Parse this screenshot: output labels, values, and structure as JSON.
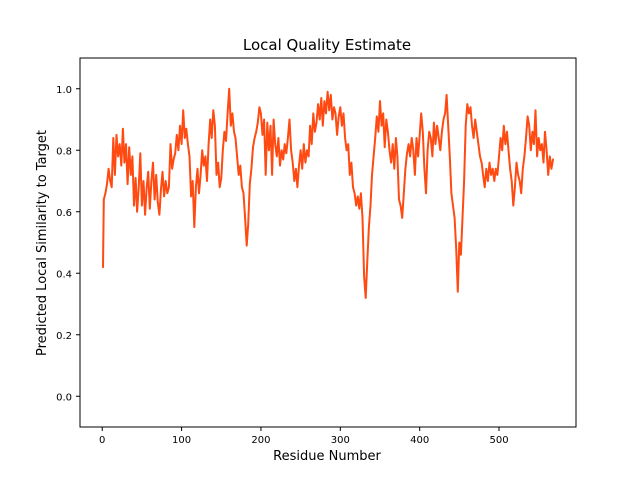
{
  "chart_data": {
    "type": "line",
    "title": "Local Quality Estimate",
    "xlabel": "Residue Number",
    "ylabel": "Predicted Local Similarity to Target",
    "xlim": [
      -28,
      597
    ],
    "ylim": [
      -0.1,
      1.1
    ],
    "xticks": [
      0,
      100,
      200,
      300,
      400,
      500
    ],
    "yticks": [
      0.0,
      0.2,
      0.4,
      0.6,
      0.8,
      1.0
    ],
    "grid": false,
    "line_color": "#ff4a12",
    "series": [
      {
        "points": [
          [
            1,
            0.42
          ],
          [
            2,
            0.64
          ],
          [
            4,
            0.66
          ],
          [
            6,
            0.69
          ],
          [
            8,
            0.74
          ],
          [
            10,
            0.7
          ],
          [
            12,
            0.68
          ],
          [
            14,
            0.84
          ],
          [
            16,
            0.72
          ],
          [
            18,
            0.85
          ],
          [
            20,
            0.78
          ],
          [
            22,
            0.82
          ],
          [
            24,
            0.75
          ],
          [
            26,
            0.87
          ],
          [
            28,
            0.76
          ],
          [
            30,
            0.82
          ],
          [
            32,
            0.69
          ],
          [
            34,
            0.81
          ],
          [
            36,
            0.72
          ],
          [
            38,
            0.78
          ],
          [
            40,
            0.62
          ],
          [
            42,
            0.71
          ],
          [
            44,
            0.6
          ],
          [
            46,
            0.68
          ],
          [
            48,
            0.79
          ],
          [
            50,
            0.62
          ],
          [
            52,
            0.7
          ],
          [
            54,
            0.59
          ],
          [
            56,
            0.68
          ],
          [
            58,
            0.73
          ],
          [
            60,
            0.61
          ],
          [
            62,
            0.7
          ],
          [
            64,
            0.76
          ],
          [
            66,
            0.64
          ],
          [
            68,
            0.72
          ],
          [
            70,
            0.63
          ],
          [
            72,
            0.59
          ],
          [
            74,
            0.67
          ],
          [
            76,
            0.73
          ],
          [
            78,
            0.65
          ],
          [
            80,
            0.7
          ],
          [
            82,
            0.66
          ],
          [
            84,
            0.68
          ],
          [
            86,
            0.82
          ],
          [
            88,
            0.74
          ],
          [
            90,
            0.77
          ],
          [
            92,
            0.79
          ],
          [
            94,
            0.85
          ],
          [
            96,
            0.8
          ],
          [
            98,
            0.88
          ],
          [
            100,
            0.82
          ],
          [
            102,
            0.93
          ],
          [
            104,
            0.84
          ],
          [
            106,
            0.87
          ],
          [
            108,
            0.82
          ],
          [
            110,
            0.78
          ],
          [
            112,
            0.65
          ],
          [
            114,
            0.7
          ],
          [
            116,
            0.55
          ],
          [
            118,
            0.68
          ],
          [
            120,
            0.74
          ],
          [
            122,
            0.66
          ],
          [
            124,
            0.72
          ],
          [
            126,
            0.8
          ],
          [
            128,
            0.75
          ],
          [
            130,
            0.78
          ],
          [
            132,
            0.7
          ],
          [
            134,
            0.82
          ],
          [
            136,
            0.9
          ],
          [
            138,
            0.84
          ],
          [
            140,
            0.93
          ],
          [
            142,
            0.88
          ],
          [
            144,
            0.72
          ],
          [
            146,
            0.76
          ],
          [
            148,
            0.68
          ],
          [
            150,
            0.71
          ],
          [
            152,
            0.8
          ],
          [
            154,
            0.86
          ],
          [
            156,
            0.83
          ],
          [
            158,
            0.92
          ],
          [
            160,
            1.0
          ],
          [
            162,
            0.88
          ],
          [
            164,
            0.92
          ],
          [
            166,
            0.86
          ],
          [
            168,
            0.84
          ],
          [
            170,
            0.78
          ],
          [
            172,
            0.72
          ],
          [
            174,
            0.75
          ],
          [
            176,
            0.68
          ],
          [
            178,
            0.66
          ],
          [
            180,
            0.58
          ],
          [
            182,
            0.49
          ],
          [
            184,
            0.56
          ],
          [
            186,
            0.69
          ],
          [
            188,
            0.74
          ],
          [
            190,
            0.81
          ],
          [
            192,
            0.84
          ],
          [
            194,
            0.86
          ],
          [
            196,
            0.89
          ],
          [
            198,
            0.94
          ],
          [
            200,
            0.92
          ],
          [
            202,
            0.85
          ],
          [
            204,
            0.9
          ],
          [
            206,
            0.72
          ],
          [
            208,
            0.89
          ],
          [
            210,
            0.8
          ],
          [
            212,
            0.88
          ],
          [
            214,
            0.72
          ],
          [
            216,
            0.9
          ],
          [
            218,
            0.82
          ],
          [
            220,
            0.78
          ],
          [
            222,
            0.84
          ],
          [
            224,
            0.75
          ],
          [
            226,
            0.8
          ],
          [
            228,
            0.77
          ],
          [
            230,
            0.82
          ],
          [
            232,
            0.79
          ],
          [
            234,
            0.84
          ],
          [
            236,
            0.9
          ],
          [
            238,
            0.8
          ],
          [
            240,
            0.76
          ],
          [
            242,
            0.7
          ],
          [
            244,
            0.74
          ],
          [
            246,
            0.68
          ],
          [
            248,
            0.75
          ],
          [
            250,
            0.8
          ],
          [
            252,
            0.74
          ],
          [
            254,
            0.82
          ],
          [
            256,
            0.76
          ],
          [
            258,
            0.8
          ],
          [
            260,
            0.78
          ],
          [
            262,
            0.88
          ],
          [
            264,
            0.82
          ],
          [
            266,
            0.92
          ],
          [
            268,
            0.86
          ],
          [
            270,
            0.89
          ],
          [
            272,
            0.95
          ],
          [
            274,
            0.9
          ],
          [
            276,
            0.97
          ],
          [
            278,
            0.88
          ],
          [
            280,
            0.96
          ],
          [
            282,
            0.92
          ],
          [
            284,
            0.99
          ],
          [
            286,
            0.93
          ],
          [
            288,
            0.98
          ],
          [
            290,
            0.9
          ],
          [
            292,
            0.94
          ],
          [
            294,
            0.92
          ],
          [
            296,
            0.85
          ],
          [
            298,
            0.91
          ],
          [
            300,
            0.94
          ],
          [
            302,
            0.88
          ],
          [
            304,
            0.92
          ],
          [
            306,
            0.84
          ],
          [
            308,
            0.8
          ],
          [
            310,
            0.82
          ],
          [
            312,
            0.72
          ],
          [
            314,
            0.76
          ],
          [
            316,
            0.68
          ],
          [
            318,
            0.66
          ],
          [
            320,
            0.62
          ],
          [
            322,
            0.65
          ],
          [
            324,
            0.61
          ],
          [
            326,
            0.66
          ],
          [
            328,
            0.58
          ],
          [
            330,
            0.39
          ],
          [
            332,
            0.32
          ],
          [
            334,
            0.44
          ],
          [
            336,
            0.55
          ],
          [
            338,
            0.62
          ],
          [
            340,
            0.72
          ],
          [
            342,
            0.78
          ],
          [
            344,
            0.84
          ],
          [
            346,
            0.91
          ],
          [
            348,
            0.86
          ],
          [
            350,
            0.96
          ],
          [
            352,
            0.88
          ],
          [
            354,
            0.92
          ],
          [
            356,
            0.81
          ],
          [
            358,
            0.9
          ],
          [
            360,
            0.86
          ],
          [
            362,
            0.8
          ],
          [
            364,
            0.76
          ],
          [
            366,
            0.82
          ],
          [
            368,
            0.74
          ],
          [
            370,
            0.84
          ],
          [
            372,
            0.78
          ],
          [
            374,
            0.64
          ],
          [
            376,
            0.62
          ],
          [
            378,
            0.58
          ],
          [
            380,
            0.66
          ],
          [
            382,
            0.74
          ],
          [
            384,
            0.79
          ],
          [
            386,
            0.82
          ],
          [
            388,
            0.78
          ],
          [
            390,
            0.84
          ],
          [
            392,
            0.8
          ],
          [
            394,
            0.72
          ],
          [
            396,
            0.84
          ],
          [
            398,
            0.78
          ],
          [
            400,
            0.85
          ],
          [
            402,
            0.92
          ],
          [
            404,
            0.86
          ],
          [
            406,
            0.74
          ],
          [
            408,
            0.66
          ],
          [
            410,
            0.8
          ],
          [
            412,
            0.86
          ],
          [
            414,
            0.84
          ],
          [
            416,
            0.78
          ],
          [
            418,
            0.89
          ],
          [
            420,
            0.82
          ],
          [
            422,
            0.88
          ],
          [
            424,
            0.84
          ],
          [
            426,
            0.8
          ],
          [
            428,
            0.86
          ],
          [
            430,
            0.9
          ],
          [
            432,
            0.92
          ],
          [
            434,
            0.98
          ],
          [
            436,
            0.88
          ],
          [
            438,
            0.78
          ],
          [
            440,
            0.66
          ],
          [
            442,
            0.62
          ],
          [
            444,
            0.58
          ],
          [
            446,
            0.48
          ],
          [
            448,
            0.34
          ],
          [
            450,
            0.5
          ],
          [
            452,
            0.46
          ],
          [
            454,
            0.58
          ],
          [
            456,
            0.7
          ],
          [
            458,
            0.88
          ],
          [
            460,
            0.95
          ],
          [
            462,
            0.92
          ],
          [
            464,
            0.94
          ],
          [
            466,
            0.88
          ],
          [
            468,
            0.84
          ],
          [
            470,
            0.9
          ],
          [
            472,
            0.86
          ],
          [
            474,
            0.82
          ],
          [
            476,
            0.78
          ],
          [
            478,
            0.76
          ],
          [
            480,
            0.72
          ],
          [
            482,
            0.68
          ],
          [
            484,
            0.74
          ],
          [
            486,
            0.7
          ],
          [
            488,
            0.76
          ],
          [
            490,
            0.72
          ],
          [
            492,
            0.74
          ],
          [
            494,
            0.7
          ],
          [
            496,
            0.74
          ],
          [
            498,
            0.72
          ],
          [
            500,
            0.78
          ],
          [
            502,
            0.84
          ],
          [
            504,
            0.8
          ],
          [
            506,
            0.88
          ],
          [
            508,
            0.82
          ],
          [
            510,
            0.86
          ],
          [
            512,
            0.8
          ],
          [
            514,
            0.74
          ],
          [
            516,
            0.7
          ],
          [
            518,
            0.62
          ],
          [
            520,
            0.68
          ],
          [
            522,
            0.76
          ],
          [
            524,
            0.72
          ],
          [
            526,
            0.7
          ],
          [
            528,
            0.66
          ],
          [
            530,
            0.74
          ],
          [
            532,
            0.78
          ],
          [
            534,
            0.84
          ],
          [
            536,
            0.91
          ],
          [
            538,
            0.88
          ],
          [
            540,
            0.8
          ],
          [
            542,
            0.86
          ],
          [
            544,
            0.82
          ],
          [
            546,
            0.93
          ],
          [
            548,
            0.78
          ],
          [
            550,
            0.84
          ],
          [
            552,
            0.8
          ],
          [
            554,
            0.82
          ],
          [
            556,
            0.76
          ],
          [
            558,
            0.86
          ],
          [
            560,
            0.8
          ],
          [
            562,
            0.72
          ],
          [
            564,
            0.78
          ],
          [
            566,
            0.74
          ],
          [
            568,
            0.77
          ]
        ]
      }
    ]
  }
}
